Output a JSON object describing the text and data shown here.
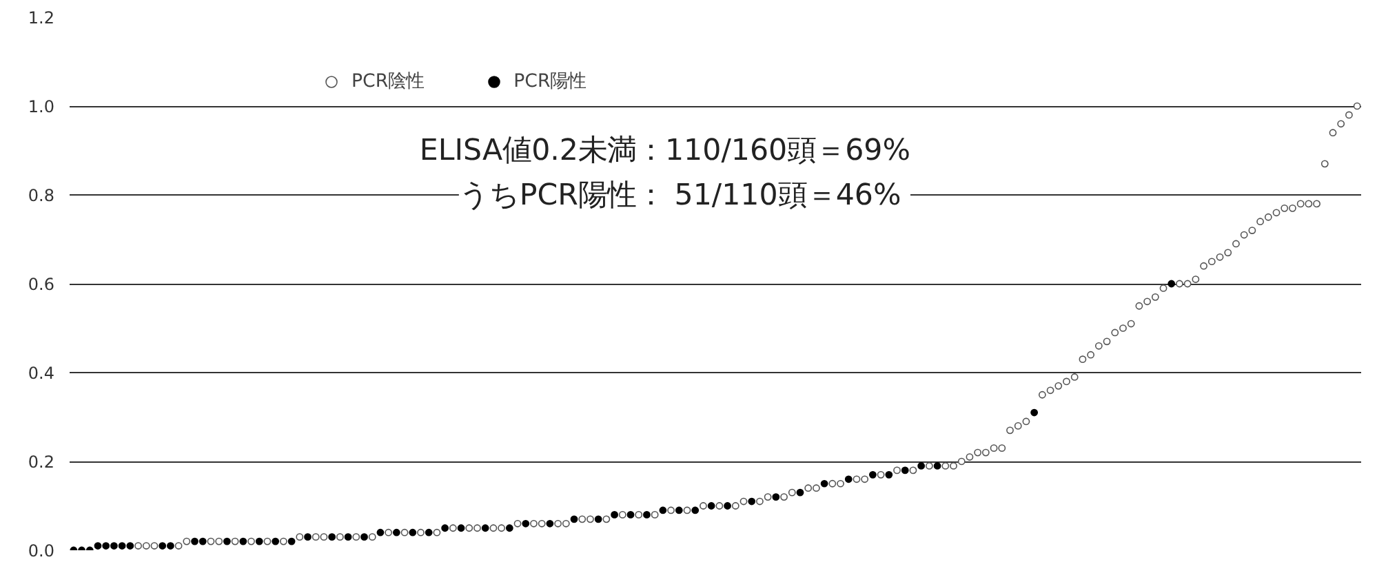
{
  "chart_data": {
    "type": "scatter",
    "categories": [
      null,
      null,
      null,
      null,
      null,
      null,
      null,
      null,
      null,
      null,
      null,
      null,
      null,
      null,
      null,
      null,
      null,
      null,
      null,
      null,
      null,
      null,
      null,
      null,
      null,
      null,
      null,
      null,
      null,
      null,
      null,
      null,
      null,
      null,
      null,
      null,
      null,
      null,
      null,
      null,
      null,
      null,
      null,
      null,
      null,
      null,
      null,
      null,
      null,
      null,
      null,
      null,
      null,
      null,
      null,
      null,
      null,
      null,
      null,
      null,
      null,
      null,
      null,
      null,
      null,
      null,
      null,
      null,
      null,
      null,
      null,
      null,
      null,
      null,
      null,
      null,
      null,
      null,
      null,
      null,
      null,
      null,
      null,
      null,
      null,
      null,
      null,
      null,
      null,
      null,
      null,
      null,
      null,
      null,
      null,
      null,
      null,
      null,
      null,
      null,
      null,
      null,
      null,
      null,
      null,
      null,
      null,
      null,
      null,
      null,
      null,
      null,
      null,
      null,
      null,
      null,
      null,
      null,
      null,
      null,
      null,
      null,
      null,
      null,
      null,
      null,
      null,
      null,
      null,
      null,
      null,
      null,
      null,
      null,
      null,
      null,
      null,
      null,
      null,
      null,
      null,
      null,
      null,
      null,
      null,
      null,
      null,
      null,
      null,
      null,
      null,
      null,
      null,
      null,
      null,
      null,
      null,
      null,
      null,
      null
    ],
    "ylim": [
      0,
      1.2
    ],
    "yticks": [
      {
        "value": 0,
        "label": "0.0"
      },
      {
        "value": 0.2,
        "label": "0.2"
      },
      {
        "value": 0.4,
        "label": "0.4"
      },
      {
        "value": 0.6,
        "label": "0.6"
      },
      {
        "value": 0.8,
        "label": "0.8"
      },
      {
        "value": 1.0,
        "label": "1.0"
      },
      {
        "value": 1.2,
        "label": "1.2"
      }
    ],
    "tick_labels": "y",
    "grid": "y",
    "legend": "top",
    "marker": "circle",
    "annotations": [
      "ELISA値0.2未満：110/160頭＝69%",
      "うちPCR陽性：  51/110頭＝46%"
    ],
    "series": [
      {
        "name": "PCR陰性",
        "color": "#ffffff",
        "values": [
          null,
          null,
          null,
          null,
          null,
          null,
          null,
          null,
          0.01,
          0.01,
          0.01,
          null,
          null,
          0.01,
          0.02,
          null,
          null,
          0.02,
          0.02,
          null,
          0.02,
          null,
          0.02,
          null,
          0.02,
          null,
          0.02,
          null,
          0.03,
          null,
          0.03,
          0.03,
          null,
          0.03,
          null,
          0.03,
          null,
          0.03,
          null,
          0.04,
          null,
          0.04,
          null,
          0.04,
          null,
          0.04,
          null,
          0.05,
          null,
          0.05,
          0.05,
          null,
          0.05,
          0.05,
          null,
          0.06,
          null,
          0.06,
          0.06,
          null,
          0.06,
          0.06,
          null,
          0.07,
          0.07,
          null,
          0.07,
          null,
          0.08,
          null,
          0.08,
          null,
          0.08,
          null,
          0.09,
          null,
          0.09,
          null,
          0.1,
          null,
          0.1,
          null,
          0.1,
          0.11,
          null,
          0.11,
          0.12,
          null,
          0.12,
          0.13,
          null,
          0.14,
          0.14,
          null,
          0.15,
          0.15,
          null,
          0.16,
          0.16,
          null,
          0.17,
          null,
          0.18,
          null,
          0.18,
          null,
          0.19,
          null,
          0.19,
          0.19,
          0.2,
          0.21,
          0.22,
          0.22,
          0.23,
          0.23,
          0.27,
          0.28,
          0.29,
          null,
          0.35,
          0.36,
          0.37,
          0.38,
          0.39,
          0.43,
          0.44,
          0.46,
          0.47,
          0.49,
          0.5,
          0.51,
          0.55,
          0.56,
          0.57,
          0.59,
          null,
          0.6,
          0.6,
          0.61,
          0.64,
          0.65,
          0.66,
          0.67,
          0.69,
          0.71,
          0.72,
          0.74,
          0.75,
          0.76,
          0.77,
          0.77,
          0.78,
          0.78,
          0.78,
          0.87,
          0.94,
          0.96,
          0.98,
          1.0
        ]
      },
      {
        "name": "PCR陽性",
        "color": "#000000",
        "values": [
          0,
          0,
          0,
          0.01,
          0.01,
          0.01,
          0.01,
          0.01,
          null,
          null,
          null,
          0.01,
          0.01,
          null,
          null,
          0.02,
          0.02,
          null,
          null,
          0.02,
          null,
          0.02,
          null,
          0.02,
          null,
          0.02,
          null,
          0.02,
          null,
          0.03,
          null,
          null,
          0.03,
          null,
          0.03,
          null,
          0.03,
          null,
          0.04,
          null,
          0.04,
          null,
          0.04,
          null,
          0.04,
          null,
          0.05,
          null,
          0.05,
          null,
          null,
          0.05,
          null,
          null,
          0.05,
          null,
          0.06,
          null,
          null,
          0.06,
          null,
          null,
          0.07,
          null,
          null,
          0.07,
          null,
          0.08,
          null,
          0.08,
          null,
          0.08,
          null,
          0.09,
          null,
          0.09,
          null,
          0.09,
          null,
          0.1,
          null,
          0.1,
          null,
          null,
          0.11,
          null,
          null,
          0.12,
          null,
          null,
          0.13,
          null,
          null,
          0.15,
          null,
          null,
          0.16,
          null,
          null,
          0.17,
          null,
          0.17,
          null,
          0.18,
          null,
          0.19,
          null,
          0.19,
          null,
          null,
          null,
          null,
          null,
          null,
          null,
          null,
          null,
          null,
          null,
          0.31,
          null,
          null,
          null,
          null,
          null,
          null,
          null,
          null,
          null,
          null,
          null,
          null,
          null,
          null,
          null,
          null,
          0.6,
          null,
          null,
          null,
          null,
          null,
          null,
          null,
          null,
          null,
          null,
          null,
          null,
          null,
          null,
          null,
          null,
          null,
          null,
          null,
          null,
          null,
          null,
          null
        ]
      }
    ]
  }
}
